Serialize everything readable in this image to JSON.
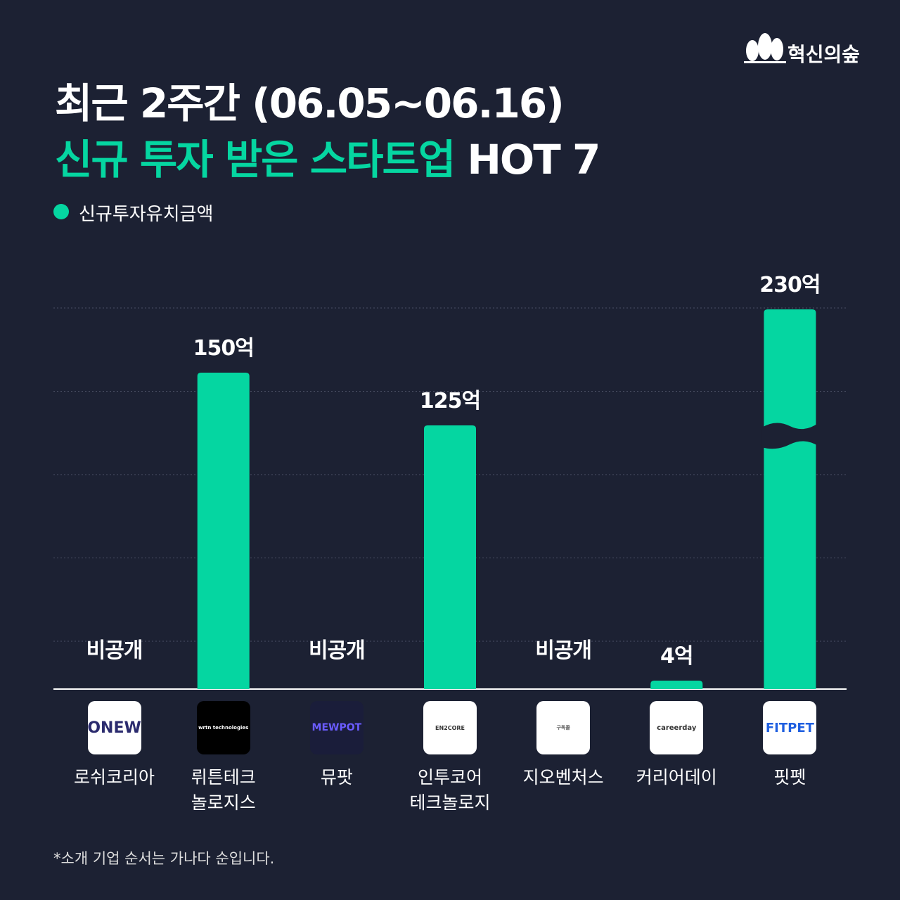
{
  "brand": "혁신의숲",
  "title_line1": "최근 2주간 (06.05~06.16)",
  "title_line2_highlight": "신규 투자 받은 스타트업",
  "title_line2_rest": "HOT 7",
  "footnote": "*소개 기업 순서는 가나다 순입니다.",
  "chart_data": {
    "type": "bar",
    "categories": [
      "로쉬코리아",
      "뤼튼테크\n놀로지스",
      "뮤팟",
      "인투코어\n테크놀로지",
      "지오벤처스",
      "커리어데이",
      "핏펫"
    ],
    "series": [
      {
        "name": "신규투자유치금액",
        "color": "#05d6a1",
        "values": [
          null,
          150,
          null,
          125,
          null,
          4,
          230
        ],
        "value_labels": [
          "비공개",
          "150억",
          "비공개",
          "125억",
          "비공개",
          "4억",
          "230억"
        ]
      }
    ],
    "ylim": [
      0,
      180
    ],
    "axis_break": true,
    "grid": true,
    "legend": "top-left",
    "logos": [
      {
        "text": "ONEW",
        "bg": "#ffffff",
        "color": "#2b2b6e",
        "size": 22
      },
      {
        "text": "wrtn technologies",
        "bg": "#000000",
        "color": "#ffffff",
        "size": 7
      },
      {
        "text": "MEWPOT",
        "bg": "#1a1d3a",
        "color": "#6b5cff",
        "size": 14
      },
      {
        "text": "EN2CORE",
        "bg": "#ffffff",
        "color": "#333333",
        "size": 8
      },
      {
        "text": "구독콜",
        "bg": "#ffffff",
        "color": "#555555",
        "size": 7
      },
      {
        "text": "careerday",
        "bg": "#ffffff",
        "color": "#333333",
        "size": 10
      },
      {
        "text": "FITPET",
        "bg": "#ffffff",
        "color": "#1f5fe0",
        "size": 18
      }
    ]
  }
}
